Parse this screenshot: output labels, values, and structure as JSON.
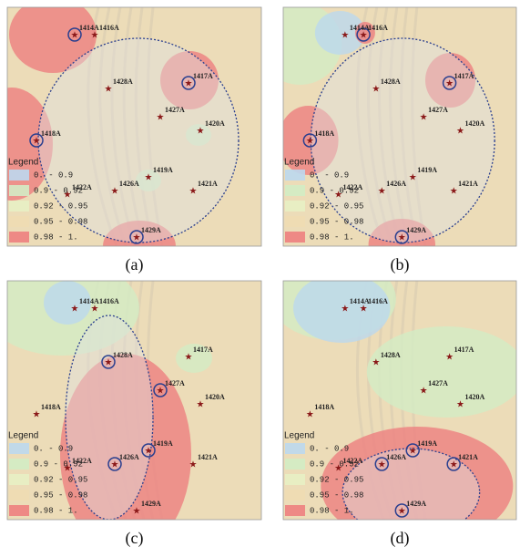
{
  "panels": [
    {
      "caption": "(a)",
      "stations": [
        "1414A",
        "1416A",
        "1428A",
        "1417A",
        "1427A",
        "1420A",
        "1418A",
        "1419A",
        "1426A",
        "1422A",
        "1421A",
        "1429A"
      ],
      "legend": {
        "title": "Legend",
        "items": [
          "0. - 0.9",
          "0.9 - 0.92",
          "0.92 - 0.95",
          "0.95 - 0.98",
          "0.98 - 1."
        ]
      }
    },
    {
      "caption": "(b)",
      "stations": [
        "1414A",
        "1416A",
        "1428A",
        "1417A",
        "1427A",
        "1420A",
        "1418A",
        "1419A",
        "1426A",
        "1422A",
        "1421A",
        "1429A"
      ],
      "legend": {
        "title": "Legend",
        "items": [
          "0. - 0.9",
          "0.9 - 0.92",
          "0.92 - 0.95",
          "0.95 - 0.98",
          "0.98 - 1."
        ]
      }
    },
    {
      "caption": "(c)",
      "stations": [
        "1414A",
        "1416A",
        "1428A",
        "1417A",
        "1427A",
        "1420A",
        "1418A",
        "1419A",
        "1426A",
        "1422A",
        "1421A",
        "1429A"
      ],
      "legend": {
        "title": "Legend",
        "items": [
          "0. - 0.9",
          "0.9 - 0.92",
          "0.92 - 0.95",
          "0.95 - 0.98",
          "0.98 - 1."
        ]
      }
    },
    {
      "caption": "(d)",
      "stations": [
        "1414A",
        "1416A",
        "1428A",
        "1417A",
        "1427A",
        "1420A",
        "1418A",
        "1419A",
        "1426A",
        "1422A",
        "1421A",
        "1429A"
      ],
      "legend": {
        "title": "Legend",
        "items": [
          "0. - 0.9",
          "0.9 - 0.92",
          "0.92 - 0.95",
          "0.95 - 0.98",
          "0.98 - 1."
        ]
      }
    }
  ]
}
